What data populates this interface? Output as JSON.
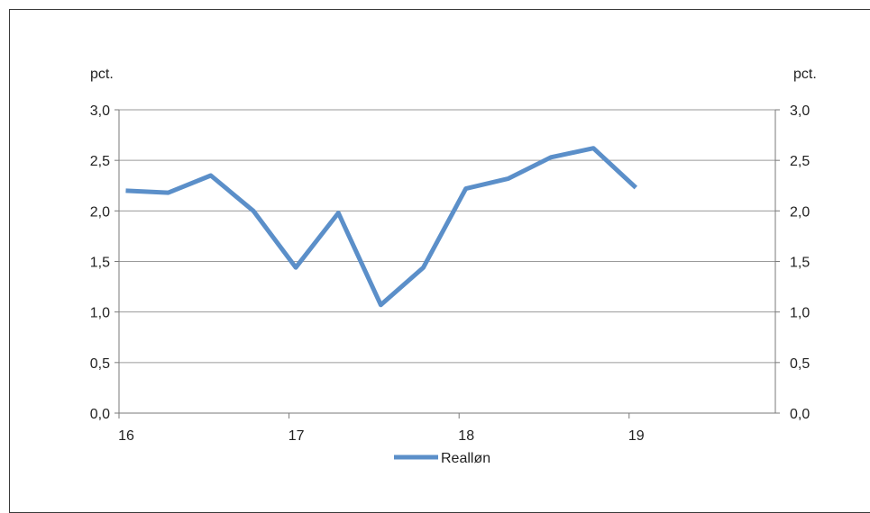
{
  "chart_data": {
    "type": "line",
    "unit_left": "pct.",
    "unit_right": "pct.",
    "ylim": [
      0,
      3
    ],
    "ytick_labels": [
      "0,0",
      "0,5",
      "1,0",
      "1,5",
      "2,0",
      "2,5",
      "3,0"
    ],
    "xlim": [
      16,
      19.86
    ],
    "xtick_labels": [
      "16",
      "17",
      "18",
      "19"
    ],
    "grid": true,
    "legend": "bottom-center",
    "series": [
      {
        "name": "Realløn",
        "color": "#5b8fc9",
        "x": [
          16.04,
          16.29,
          16.54,
          16.79,
          17.04,
          17.29,
          17.54,
          17.79,
          18.04,
          18.29,
          18.54,
          18.79,
          19.04
        ],
        "values": [
          2.2,
          2.18,
          2.35,
          2.0,
          1.44,
          1.98,
          1.07,
          1.44,
          2.22,
          2.32,
          2.53,
          2.62,
          2.23
        ]
      }
    ]
  }
}
